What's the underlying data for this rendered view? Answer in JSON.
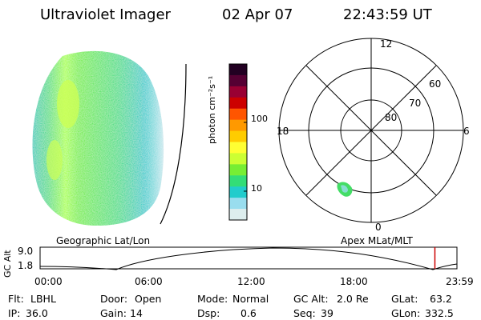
{
  "header": {
    "instrument": "Ultraviolet Imager",
    "date": "02 Apr 07",
    "time": "22:43:59 UT"
  },
  "left_panel": {
    "label": "Geographic Lat/Lon"
  },
  "colorbar": {
    "unit_label": "photon cm⁻²s⁻¹",
    "ticks": [
      "100",
      "10"
    ],
    "colors": [
      "#220022",
      "#550033",
      "#990033",
      "#cc0000",
      "#ff5500",
      "#ff9900",
      "#ffcc00",
      "#ffff33",
      "#ccff33",
      "#77ee33",
      "#33dd77",
      "#22cccc",
      "#99ddee",
      "#ddeeee"
    ]
  },
  "right_panel": {
    "label": "Apex MLat/MLT",
    "mlt_labels": {
      "top": "12",
      "left": "18",
      "right": "6",
      "bottom": "0"
    },
    "lat_labels": [
      "60",
      "70",
      "80"
    ]
  },
  "timeline": {
    "y_axis_label": "GC Alt",
    "y_ticks": [
      "9.0",
      "1.8"
    ],
    "x_ticks": [
      "00:00",
      "06:00",
      "12:00",
      "18:00",
      "23:59"
    ],
    "marker_hour": 22.73,
    "marker_color": "#cc0000"
  },
  "footer": {
    "row1": [
      {
        "key": "Flt:",
        "value": "LBHL"
      },
      {
        "key": "Door:",
        "value": "Open"
      },
      {
        "key": "Mode:",
        "value": "Normal"
      },
      {
        "key": "GC Alt:",
        "value": "2.0 Re"
      },
      {
        "key": "GLat:",
        "value": "63.2"
      }
    ],
    "row2": [
      {
        "key": "IP:",
        "value": "36.0"
      },
      {
        "key": "Gain:",
        "value": "14"
      },
      {
        "key": "Dsp:",
        "value": "0.6"
      },
      {
        "key": "Seq:",
        "value": "39"
      },
      {
        "key": "GLon:",
        "value": "332.5"
      }
    ]
  }
}
